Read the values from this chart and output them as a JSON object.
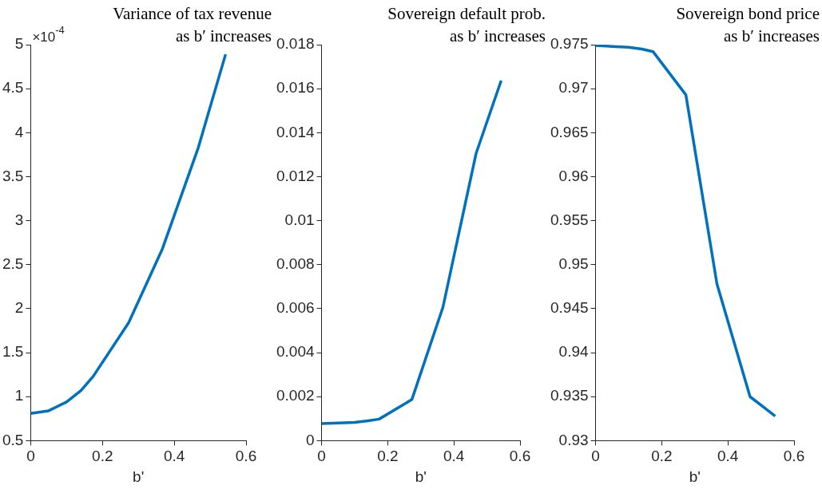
{
  "chart_data": [
    {
      "type": "line",
      "title": "Variance of tax revenue\nas b′ increases",
      "xlabel": "b'",
      "annotations": [
        "×10$^{-4}$"
      ],
      "xlim": [
        0,
        0.6
      ],
      "xticks": [
        0,
        0.2,
        0.4,
        0.6
      ],
      "ylim": [
        0.5,
        5
      ],
      "yticks": [
        0.5,
        1,
        1.5,
        2,
        2.5,
        3,
        3.5,
        4,
        4.5,
        5
      ],
      "x": [
        0,
        0.05,
        0.1,
        0.14,
        0.174,
        0.273,
        0.367,
        0.467,
        0.543
      ],
      "series": [
        {
          "color": "#0072bd",
          "values": [
            0.81,
            0.84,
            0.94,
            1.07,
            1.23,
            1.84,
            2.68,
            3.83,
            4.89
          ]
        }
      ]
    },
    {
      "type": "line",
      "title": "Sovereign default prob.\nas b′ increases",
      "xlabel": "b'",
      "xlim": [
        0,
        0.6
      ],
      "xticks": [
        0,
        0.2,
        0.4,
        0.6
      ],
      "ylim": [
        0,
        0.018
      ],
      "yticks": [
        0,
        0.002,
        0.004,
        0.006,
        0.008,
        0.01,
        0.012,
        0.014,
        0.016,
        0.018
      ],
      "x": [
        0,
        0.05,
        0.1,
        0.14,
        0.174,
        0.273,
        0.367,
        0.467,
        0.543
      ],
      "series": [
        {
          "color": "#0072bd",
          "values": [
            0.00078,
            0.0008,
            0.00083,
            0.0009,
            0.00098,
            0.00187,
            0.00607,
            0.01305,
            0.01637
          ]
        }
      ]
    },
    {
      "type": "line",
      "title": "Sovereign bond price\nas b′ increases",
      "xlabel": "b'",
      "xlim": [
        0,
        0.6
      ],
      "xticks": [
        0,
        0.2,
        0.4,
        0.6
      ],
      "ylim": [
        0.93,
        0.975
      ],
      "yticks": [
        0.93,
        0.935,
        0.94,
        0.945,
        0.95,
        0.955,
        0.96,
        0.965,
        0.97,
        0.975
      ],
      "x": [
        0,
        0.05,
        0.1,
        0.14,
        0.174,
        0.273,
        0.367,
        0.467,
        0.543
      ],
      "series": [
        {
          "color": "#0072bd",
          "values": [
            0.9749,
            0.9748,
            0.9747,
            0.9745,
            0.9742,
            0.9693,
            0.9478,
            0.935,
            0.9328
          ]
        }
      ]
    }
  ]
}
